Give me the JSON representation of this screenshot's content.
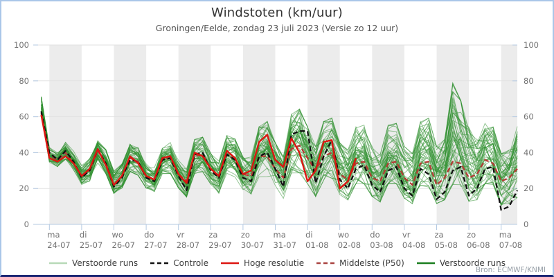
{
  "header": {
    "title": "Windstoten (km/uur)",
    "subtitle": "Groningen/Eelde, zondag 23 juli 2023 (Versie zo 12 uur)"
  },
  "credit": "Bron: ECMWF/KNMI",
  "frame": {
    "border_color": "#aac6e8",
    "bottom_border_color": "#1c2674"
  },
  "chart_data": {
    "type": "line",
    "title": "Windstoten (km/uur)",
    "subtitle": "Groningen/Eelde, zondag 23 juli 2023 (Versie zo 12 uur)",
    "ylabel": "",
    "xlabel": "",
    "ylim": [
      0,
      100
    ],
    "yticks": [
      0,
      20,
      40,
      60,
      80,
      100
    ],
    "y_axis_sides": [
      "left",
      "right"
    ],
    "grid": "horizontal",
    "gridline_color": "#e2e2e2",
    "axis_line_color": "#b3c9e2",
    "band_colors": [
      "#ececec",
      "#ffffff"
    ],
    "x_start": "zo 23-07 12:00",
    "x_step_hours": 6,
    "x_total_days": 15,
    "x_days": [
      {
        "dow": "ma",
        "date": "24-07"
      },
      {
        "dow": "di",
        "date": "25-07"
      },
      {
        "dow": "wo",
        "date": "26-07"
      },
      {
        "dow": "do",
        "date": "27-07"
      },
      {
        "dow": "vr",
        "date": "28-07"
      },
      {
        "dow": "za",
        "date": "29-07"
      },
      {
        "dow": "zo",
        "date": "30-07"
      },
      {
        "dow": "ma",
        "date": "31-07"
      },
      {
        "dow": "di",
        "date": "01-08"
      },
      {
        "dow": "wo",
        "date": "02-08"
      },
      {
        "dow": "do",
        "date": "03-08"
      },
      {
        "dow": "vr",
        "date": "04-08"
      },
      {
        "dow": "za",
        "date": "05-08"
      },
      {
        "dow": "zo",
        "date": "06-08"
      },
      {
        "dow": "ma",
        "date": "07-08"
      }
    ],
    "series": [
      {
        "name": "Verstoorde runs",
        "type": "ensemble",
        "color": "#2e8f2e",
        "count": 50,
        "opacity": 0.5,
        "width": 1,
        "envelope_min": [
          56,
          34,
          32,
          36,
          30,
          22,
          24,
          34,
          28,
          17,
          20,
          29,
          27,
          20,
          18,
          28,
          28,
          20,
          15,
          28,
          29,
          22,
          17,
          28,
          26,
          18,
          16,
          26,
          26,
          20,
          14,
          28,
          28,
          22,
          15,
          24,
          25,
          16,
          13,
          22,
          22,
          15,
          12,
          22,
          22,
          14,
          11,
          21,
          20,
          11,
          13,
          21,
          20,
          12,
          13,
          22,
          20,
          10,
          11,
          14
        ],
        "envelope_max": [
          75,
          43,
          40,
          46,
          41,
          33,
          37,
          48,
          42,
          30,
          34,
          45,
          43,
          34,
          32,
          45,
          46,
          36,
          31,
          48,
          49,
          40,
          36,
          50,
          48,
          38,
          38,
          55,
          58,
          46,
          40,
          62,
          65,
          55,
          44,
          58,
          60,
          46,
          42,
          55,
          56,
          44,
          40,
          56,
          57,
          44,
          40,
          58,
          60,
          44,
          48,
          80,
          70,
          56,
          48,
          57,
          55,
          40,
          42,
          57
        ]
      },
      {
        "name": "Controle",
        "type": "line",
        "style": "dashed",
        "color": "#111111",
        "width": 2.3,
        "values": [
          63,
          40,
          36,
          41,
          35,
          26,
          30,
          42,
          34,
          21,
          26,
          36,
          35,
          26,
          24,
          36,
          37,
          27,
          19,
          39,
          40,
          30,
          26,
          39,
          36,
          26,
          24,
          38,
          40,
          31,
          21,
          50,
          52,
          52,
          23,
          38,
          47,
          25,
          20,
          31,
          33,
          22,
          18,
          30,
          32,
          20,
          16,
          31,
          28,
          14,
          18,
          30,
          32,
          16,
          20,
          31,
          32,
          8,
          10,
          19
        ]
      },
      {
        "name": "Middelste (P50)",
        "type": "line",
        "style": "dashed",
        "color": "#b23b34",
        "width": 2.3,
        "values": [
          62,
          39,
          36,
          40,
          34,
          27,
          30,
          41,
          34,
          22,
          27,
          37,
          35,
          27,
          25,
          36,
          37,
          28,
          24,
          38,
          39,
          31,
          27,
          39,
          36,
          28,
          27,
          38,
          38,
          31,
          26,
          42,
          44,
          37,
          30,
          38,
          40,
          28,
          25,
          34,
          35,
          26,
          24,
          34,
          35,
          26,
          22,
          34,
          35,
          22,
          26,
          35,
          34,
          26,
          28,
          36,
          34,
          24,
          26,
          31
        ]
      },
      {
        "name": "Hoge resolutie",
        "type": "line",
        "style": "solid",
        "color": "#dd1510",
        "width": 2.4,
        "values": [
          61,
          37,
          35,
          38,
          34,
          27,
          31,
          42,
          33,
          22,
          27,
          38,
          34,
          27,
          25,
          37,
          38,
          28,
          23,
          40,
          38,
          31,
          27,
          41,
          37,
          28,
          30,
          46,
          50,
          36,
          32,
          48,
          40,
          24,
          30,
          46,
          47,
          20,
          24,
          37
        ]
      }
    ],
    "legend": [
      {
        "label": "Verstoorde runs",
        "color": "#b7d9b7",
        "style": "solid"
      },
      {
        "label": "Controle",
        "color": "#111111",
        "style": "dashed"
      },
      {
        "label": "Hoge resolutie",
        "color": "#dd1510",
        "style": "solid"
      },
      {
        "label": "Middelste (P50)",
        "color": "#a94340",
        "style": "dashed"
      },
      {
        "label": "Verstoorde runs",
        "color": "#1a7e1f",
        "style": "solid"
      }
    ],
    "legend_position": "bottom-center"
  }
}
